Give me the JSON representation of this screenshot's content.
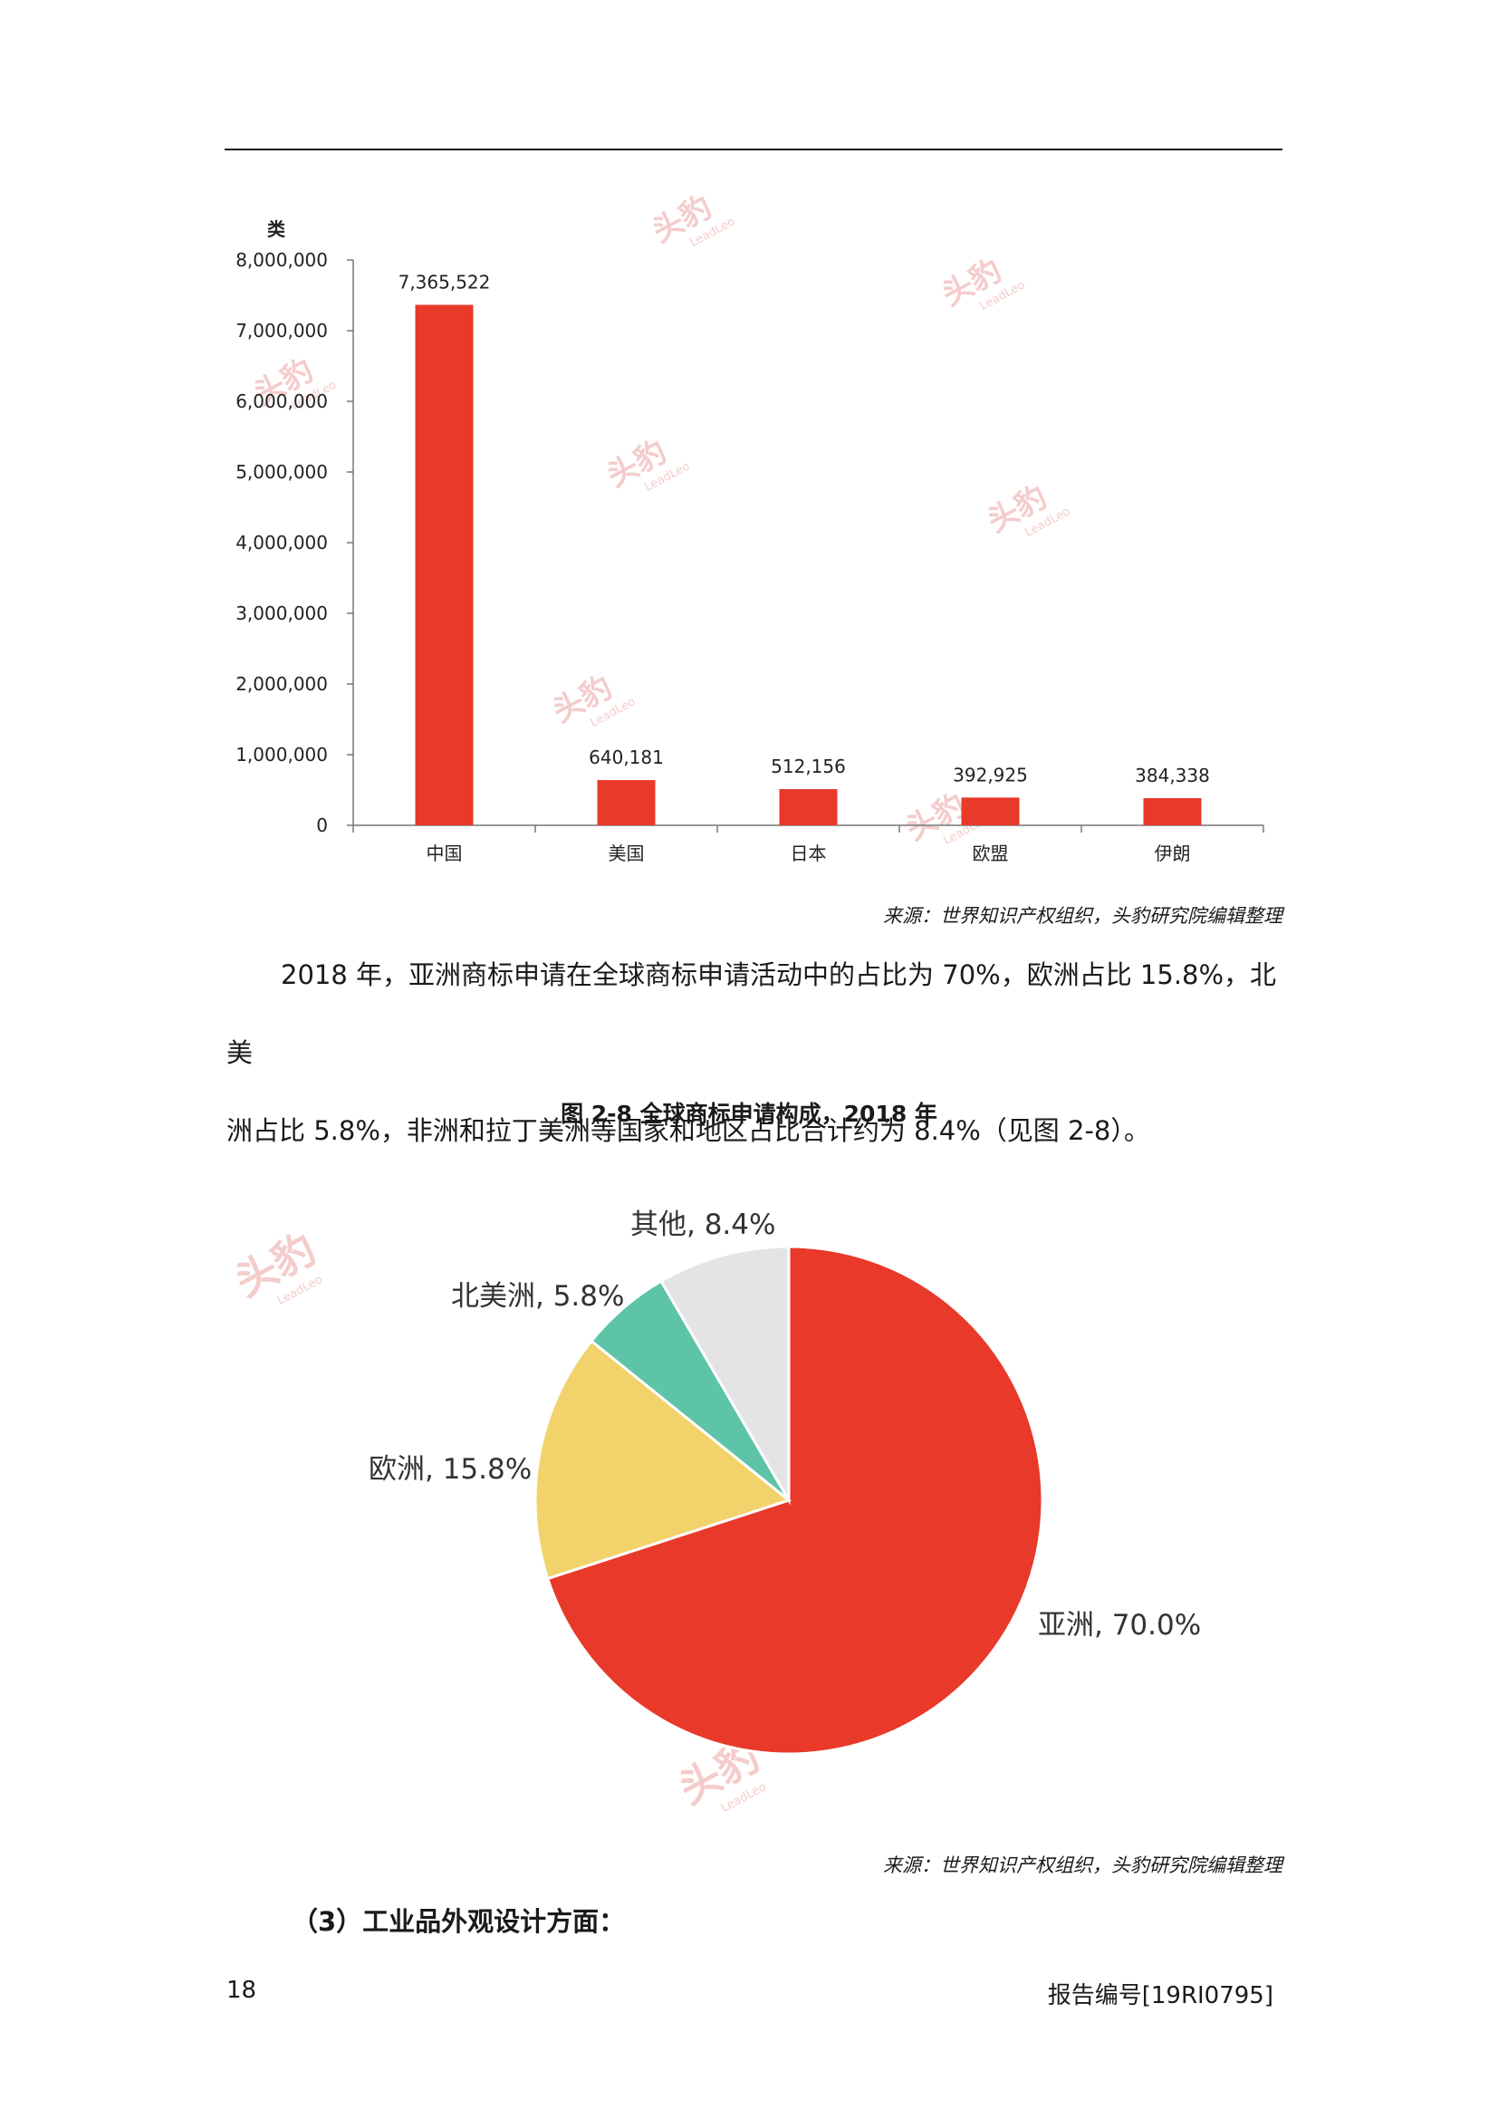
{
  "bar_chart": {
    "unit_label": "类",
    "source": "来源：世界知识产权组织，头豹研究院编辑整理"
  },
  "paragraph": {
    "line1": "2018 年，亚洲商标申请在全球商标申请活动中的占比为 70%，欧洲占比 15.8%，北美",
    "line2": "洲占比 5.8%，非洲和拉丁美洲等国家和地区占比合计约为 8.4%（见图 2-8）。"
  },
  "figure_title": "图 2-8 全球商标申请构成，2018 年",
  "pie_chart": {
    "source": "来源：世界知识产权组织，头豹研究院编辑整理"
  },
  "watermark": {
    "cn": "头豹",
    "en": "LeadLeo"
  },
  "section_heading": "（3）工业品外观设计方面：",
  "footer": {
    "page_number": "18",
    "report_id": "报告编号[19RI0795]"
  },
  "chart_data": [
    {
      "type": "bar",
      "categories": [
        "中国",
        "美国",
        "日本",
        "欧盟",
        "伊朗"
      ],
      "values": [
        7365522,
        640181,
        512156,
        392925,
        384338
      ],
      "value_labels": [
        "7,365,522",
        "640,181",
        "512,156",
        "392,925",
        "384,338"
      ],
      "ylabel": "类",
      "ylim": [
        0,
        8000000
      ],
      "yticks": [
        0,
        1000000,
        2000000,
        3000000,
        4000000,
        5000000,
        6000000,
        7000000,
        8000000
      ],
      "ytick_labels": [
        "0",
        "1,000,000",
        "2,000,000",
        "3,000,000",
        "4,000,000",
        "5,000,000",
        "6,000,000",
        "7,000,000",
        "8,000,000"
      ],
      "colors": {
        "bar": "#e8392b"
      },
      "grid": false
    },
    {
      "type": "pie",
      "slices": [
        {
          "label": "亚洲, 70.0%",
          "value": 70.0,
          "color": "#e8392b"
        },
        {
          "label": "欧洲, 15.8%",
          "value": 15.8,
          "color": "#f2d36b"
        },
        {
          "label": "北美洲, 5.8%",
          "value": 5.8,
          "color": "#5ec4a8"
        },
        {
          "label": "其他, 8.4%",
          "value": 8.4,
          "color": "#e4e4e4"
        }
      ]
    }
  ]
}
